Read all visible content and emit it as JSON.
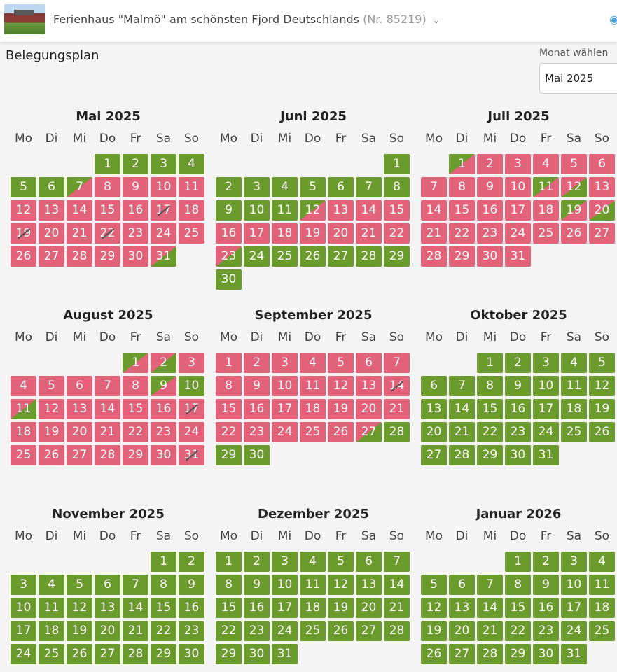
{
  "header": {
    "title": "Ferienhaus \"Malmö\" am schönsten Fjord Deutschlands",
    "object_nr": "(Nr. 85219)"
  },
  "page": {
    "title": "Belegungsplan",
    "month_label": "Monat wählen",
    "month_selected": "Mai 2025"
  },
  "weekdays": [
    "Mo",
    "Di",
    "Mi",
    "Do",
    "Fr",
    "Sa",
    "So"
  ],
  "colors": {
    "free": "#6b9b2c",
    "booked": "#e2627a"
  },
  "months": [
    {
      "title": "Mai 2025",
      "offset": 3,
      "days": 31,
      "booked": [
        8,
        9,
        10,
        11,
        12,
        13,
        14,
        15,
        16,
        17,
        18,
        19,
        20,
        21,
        22,
        23,
        24,
        25,
        26,
        27,
        28,
        29,
        30
      ],
      "arrival": [
        7
      ],
      "departure": [
        31
      ],
      "blocked": [
        17,
        19,
        22
      ]
    },
    {
      "title": "Juni 2025",
      "offset": 6,
      "days": 30,
      "booked": [
        13,
        14,
        15,
        16,
        17,
        18,
        19,
        20,
        21,
        22
      ],
      "arrival": [
        12
      ],
      "departure": [
        23
      ],
      "blocked": []
    },
    {
      "title": "Juli 2025",
      "offset": 1,
      "days": 31,
      "booked": [
        2,
        3,
        4,
        5,
        6,
        7,
        8,
        9,
        10,
        13,
        14,
        15,
        16,
        17,
        18,
        21,
        22,
        23,
        24,
        25,
        26,
        27,
        28,
        29,
        30,
        31
      ],
      "arrival": [
        1,
        11,
        19
      ],
      "departure": [
        12,
        20
      ],
      "blocked": []
    },
    {
      "title": "August 2025",
      "offset": 4,
      "days": 31,
      "booked": [
        3,
        4,
        5,
        6,
        7,
        8,
        12,
        13,
        14,
        15,
        16,
        17,
        18,
        19,
        20,
        21,
        22,
        23,
        24,
        25,
        26,
        27,
        28,
        29,
        30,
        31
      ],
      "arrival": [
        1,
        9
      ],
      "departure": [
        2,
        11
      ],
      "blocked": [
        17,
        31
      ]
    },
    {
      "title": "September 2025",
      "offset": 0,
      "days": 30,
      "booked": [
        1,
        2,
        3,
        4,
        5,
        6,
        7,
        8,
        9,
        10,
        11,
        12,
        13,
        14,
        15,
        16,
        17,
        18,
        19,
        20,
        21,
        22,
        23,
        24,
        25,
        26
      ],
      "arrival": [],
      "departure": [
        27
      ],
      "blocked": [
        14
      ]
    },
    {
      "title": "Oktober 2025",
      "offset": 2,
      "days": 31,
      "booked": [],
      "arrival": [],
      "departure": [],
      "blocked": []
    },
    {
      "title": "November 2025",
      "offset": 5,
      "days": 30,
      "booked": [],
      "arrival": [],
      "departure": [],
      "blocked": []
    },
    {
      "title": "Dezember 2025",
      "offset": 0,
      "days": 31,
      "booked": [],
      "arrival": [],
      "departure": [],
      "blocked": []
    },
    {
      "title": "Januar 2026",
      "offset": 3,
      "days": 31,
      "booked": [],
      "arrival": [],
      "departure": [],
      "blocked": []
    }
  ]
}
